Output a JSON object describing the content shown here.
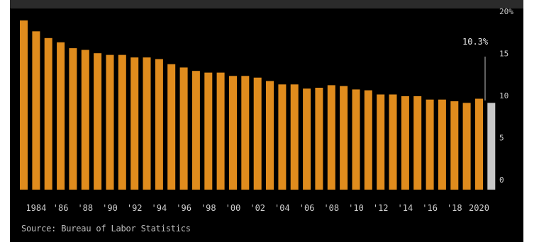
{
  "chart_data": {
    "type": "bar",
    "title": "",
    "xlabel": "",
    "ylabel": "",
    "categories": [
      "1983",
      "1984",
      "1985",
      "1986",
      "1987",
      "1988",
      "1989",
      "1990",
      "1991",
      "1992",
      "1993",
      "1994",
      "1995",
      "1996",
      "1997",
      "1998",
      "1999",
      "2000",
      "2001",
      "2002",
      "2003",
      "2004",
      "2005",
      "2006",
      "2007",
      "2008",
      "2009",
      "2010",
      "2011",
      "2012",
      "2013",
      "2014",
      "2015",
      "2016",
      "2017",
      "2018",
      "2019",
      "2020",
      "2021"
    ],
    "values": [
      20.1,
      18.8,
      18.0,
      17.5,
      16.8,
      16.6,
      16.2,
      16.0,
      16.0,
      15.7,
      15.7,
      15.5,
      14.9,
      14.5,
      14.1,
      13.9,
      13.9,
      13.5,
      13.5,
      13.3,
      12.9,
      12.5,
      12.5,
      12.0,
      12.1,
      12.4,
      12.3,
      11.9,
      11.8,
      11.3,
      11.3,
      11.1,
      11.1,
      10.7,
      10.7,
      10.5,
      10.3,
      10.8,
      10.3
    ],
    "highlight_index": 38,
    "colors": {
      "bar": "#e08c1d",
      "highlight": "#c8c8c8",
      "background": "#000000"
    },
    "xtick_labels": [
      "1984",
      "'86",
      "'88",
      "'90",
      "'92",
      "'94",
      "'96",
      "'98",
      "'00",
      "'02",
      "'04",
      "'06",
      "'08",
      "'10",
      "'12",
      "'14",
      "'16",
      "'18",
      "2020"
    ],
    "ylim": [
      0,
      20
    ],
    "yticks": [
      "0",
      "5",
      "10",
      "15",
      "20%"
    ],
    "annotation": "10.3%",
    "grid": false
  },
  "source": "Source: Bureau of Labor Statistics"
}
